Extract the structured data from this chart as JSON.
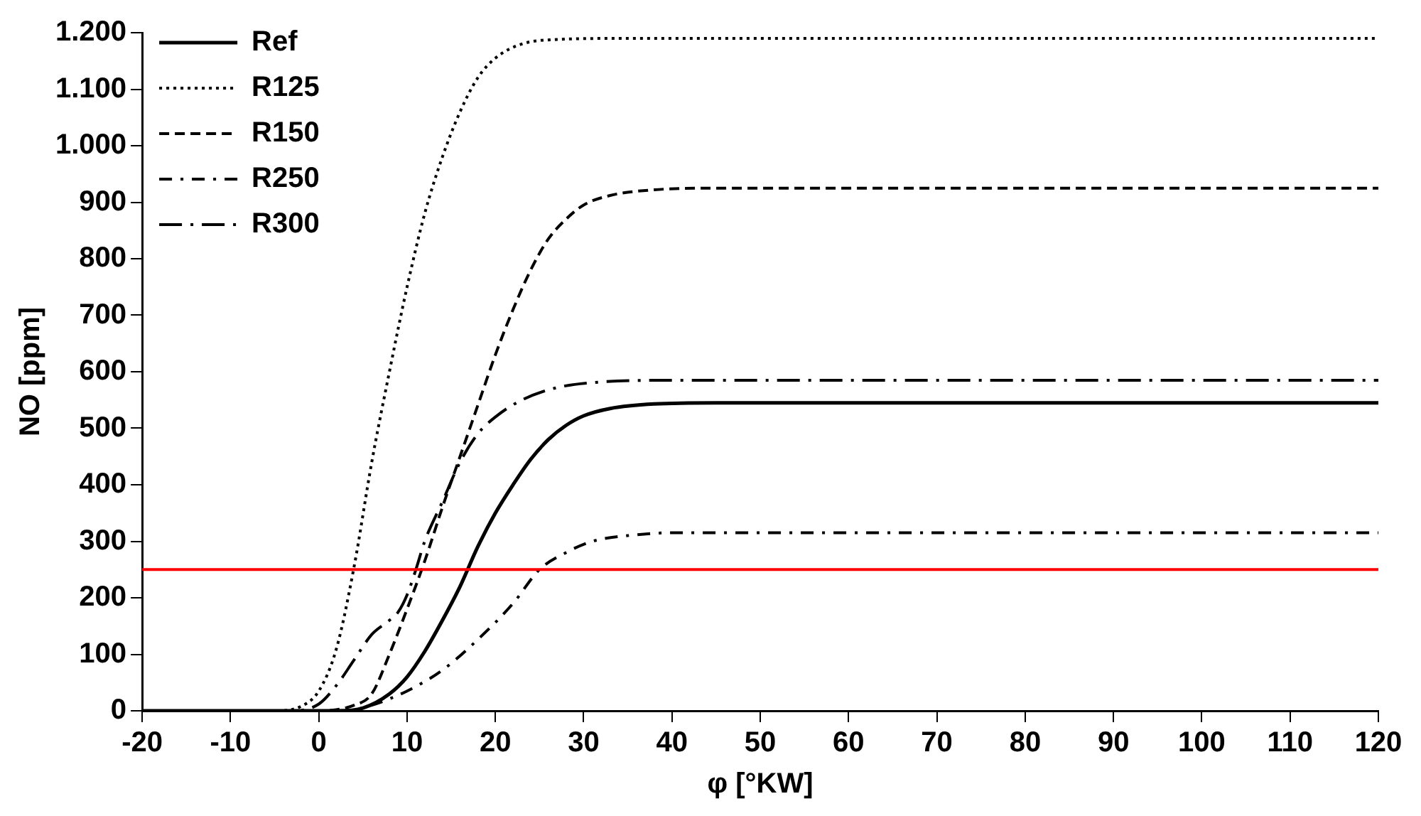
{
  "chart_data": {
    "type": "line",
    "xlabel": "φ [°KW]",
    "ylabel": "NO [ppm]",
    "xlim": [
      -20,
      120
    ],
    "xticks": [
      -20,
      -10,
      0,
      10,
      20,
      30,
      40,
      50,
      60,
      70,
      80,
      90,
      100,
      110,
      120
    ],
    "ylim": [
      0,
      1200
    ],
    "yticks": [
      0,
      100,
      200,
      300,
      400,
      500,
      600,
      700,
      800,
      900,
      {
        "value": 1000,
        "label": "1.000"
      },
      {
        "value": 1100,
        "label": "1.100"
      },
      {
        "value": 1200,
        "label": "1.200"
      }
    ],
    "grid": false,
    "legend": "top left",
    "marker": "none",
    "ref_lines": [
      {
        "axis": "y",
        "value": 250,
        "color": "#ff0000",
        "line_style": "solid"
      }
    ],
    "series": [
      {
        "name": "Ref",
        "color": "#000000",
        "line_style": "solid",
        "x": [
          -20,
          2,
          5,
          8,
          10,
          12,
          14,
          16,
          18,
          20,
          22,
          24,
          26,
          28,
          30,
          33,
          38,
          45,
          120
        ],
        "values": [
          0,
          0,
          5,
          30,
          60,
          105,
          160,
          220,
          290,
          350,
          400,
          445,
          480,
          505,
          522,
          535,
          543,
          545,
          545
        ]
      },
      {
        "name": "R125",
        "color": "#000000",
        "line_style": "dotted",
        "x": [
          -20,
          -5,
          -2,
          0,
          2,
          4,
          6,
          8,
          10,
          12,
          14,
          16,
          18,
          20,
          23,
          27,
          35,
          120
        ],
        "values": [
          0,
          0,
          8,
          35,
          110,
          255,
          440,
          600,
          750,
          880,
          980,
          1060,
          1120,
          1155,
          1180,
          1188,
          1190,
          1190
        ]
      },
      {
        "name": "R150",
        "color": "#000000",
        "line_style": "dashed",
        "x": [
          -20,
          0,
          4,
          6,
          8,
          10,
          12,
          14,
          16,
          18,
          20,
          22,
          24,
          26,
          28,
          30,
          33,
          38,
          45,
          120
        ],
        "values": [
          0,
          0,
          10,
          30,
          100,
          180,
          265,
          360,
          450,
          540,
          630,
          710,
          780,
          835,
          870,
          895,
          912,
          922,
          925,
          925
        ]
      },
      {
        "name": "R250",
        "color": "#000000",
        "line_style": "dashdot",
        "x": [
          -20,
          3,
          6,
          10,
          14,
          18,
          22,
          25,
          28,
          31,
          35,
          40,
          120
        ],
        "values": [
          0,
          0,
          10,
          35,
          72,
          126,
          190,
          250,
          280,
          300,
          310,
          315,
          315
        ]
      },
      {
        "name": "R300",
        "color": "#000000",
        "line_style": "longdashdot",
        "x": [
          -20,
          -3,
          0,
          2,
          4,
          6,
          8,
          9,
          10,
          11,
          12,
          14,
          16,
          18,
          20,
          23,
          27,
          32,
          40,
          120
        ],
        "values": [
          0,
          0,
          12,
          45,
          90,
          135,
          160,
          175,
          205,
          250,
          300,
          370,
          440,
          490,
          520,
          550,
          572,
          582,
          585,
          585
        ]
      }
    ]
  }
}
